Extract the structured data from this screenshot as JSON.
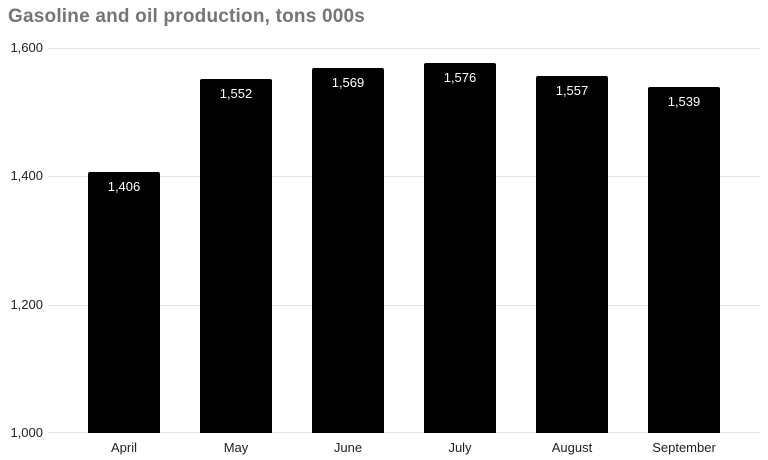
{
  "title": "Gasoline and oil production, tons 000s",
  "colors": {
    "bar": "#000000",
    "bar_label": "#ffffff",
    "gridline": "#e6e6e6",
    "axis_text": "#222222",
    "title_text": "#757575",
    "background": "#ffffff"
  },
  "chart_data": {
    "type": "bar",
    "title": "Gasoline and oil production, tons 000s",
    "categories": [
      "April",
      "May",
      "June",
      "July",
      "August",
      "September"
    ],
    "values": [
      1406,
      1552,
      1569,
      1576,
      1557,
      1539
    ],
    "value_labels": [
      "1,406",
      "1,552",
      "1,569",
      "1,576",
      "1,557",
      "1,539"
    ],
    "xlabel": "",
    "ylabel": "",
    "ylim": [
      1000,
      1600
    ],
    "yticks": [
      1600,
      1400,
      1200,
      1000
    ],
    "ytick_labels": [
      "1,600",
      "1,400",
      "1,200",
      "1,000"
    ],
    "grid": true,
    "legend": "none",
    "data_labels": "inside-top"
  }
}
